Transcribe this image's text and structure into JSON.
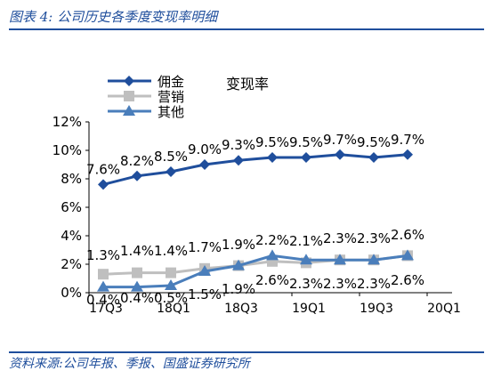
{
  "figure": {
    "title": "图表 4:  公司历史各季度变现率明细",
    "source": "资料来源:公司年报、季报、国盛证券研究所"
  },
  "chart_data": {
    "type": "line",
    "title": "变现率",
    "x_tick_labels": [
      "17Q3",
      "18Q1",
      "18Q3",
      "19Q1",
      "19Q3",
      "20Q1"
    ],
    "categories": [
      "17Q3",
      "17Q4",
      "18Q1",
      "18Q2",
      "18Q3",
      "18Q4",
      "19Q1",
      "19Q2",
      "19Q3",
      "19Q4"
    ],
    "y_tick_labels": [
      "0%",
      "2%",
      "4%",
      "6%",
      "8%",
      "10%",
      "12%"
    ],
    "ylim": [
      0,
      12
    ],
    "grid": false,
    "legend_position": "top-left",
    "series": [
      {
        "name": "佣金",
        "color": "#1f4e9c",
        "marker": "diamond",
        "values": [
          7.6,
          8.2,
          8.5,
          9.0,
          9.3,
          9.5,
          9.5,
          9.7,
          9.5,
          9.7
        ],
        "labels": [
          "7.6%",
          "8.2%",
          "8.5%",
          "9.0%",
          "9.3%",
          "9.5%",
          "9.5%",
          "9.7%",
          "9.5%",
          "9.7%"
        ]
      },
      {
        "name": "营销",
        "color": "#bfbfbf",
        "marker": "square",
        "values": [
          1.3,
          1.4,
          1.4,
          1.7,
          1.9,
          2.2,
          2.1,
          2.3,
          2.3,
          2.6
        ],
        "labels": [
          "1.3%",
          "1.4%",
          "1.4%",
          "1.7%",
          "1.9%",
          "2.2%",
          "2.1%",
          "2.3%",
          "2.3%",
          "2.6%"
        ]
      },
      {
        "name": "其他",
        "color": "#4a7ebb",
        "marker": "triangle",
        "values": [
          0.4,
          0.4,
          0.5,
          1.5,
          1.9,
          2.6,
          2.3,
          2.3,
          2.3,
          2.6
        ],
        "labels": [
          "0.4%",
          "0.4%",
          "0.5%",
          "1.5%",
          "1.9%",
          "2.6%",
          "2.3%",
          "2.3%",
          "2.3%",
          "2.6%"
        ]
      }
    ]
  }
}
